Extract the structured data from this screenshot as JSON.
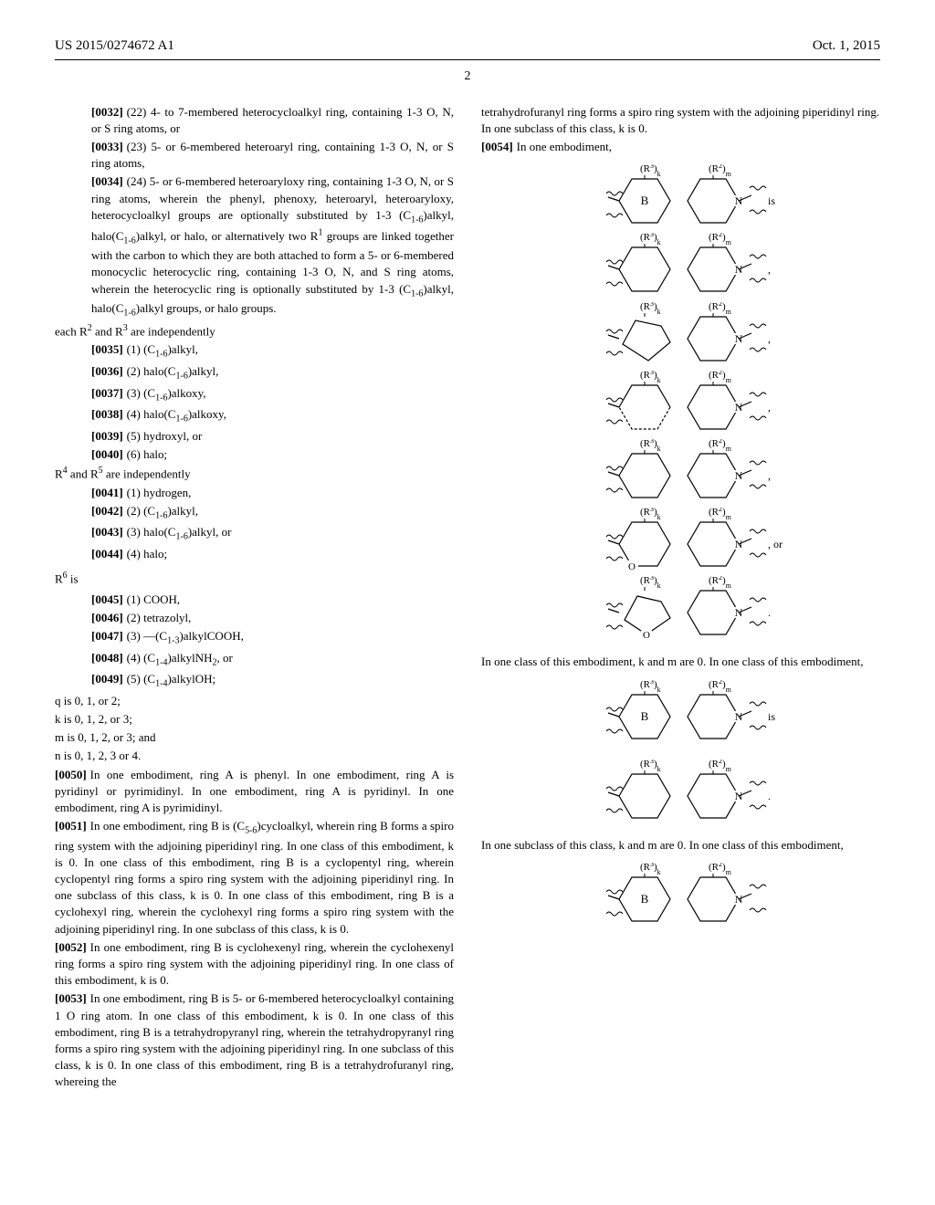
{
  "header": {
    "pub_number": "US 2015/0274672 A1",
    "pub_date": "Oct. 1, 2015",
    "page_number": "2"
  },
  "left_column": {
    "items": [
      {
        "type": "para",
        "num": "[0032]",
        "indent": 2,
        "text": "(22) 4- to 7-membered heterocycloalkyl ring, containing 1-3 O, N, or S ring atoms, or"
      },
      {
        "type": "para",
        "num": "[0033]",
        "indent": 2,
        "text": "(23) 5- or 6-membered heteroaryl ring, containing 1-3 O, N, or S ring atoms,"
      },
      {
        "type": "para",
        "num": "[0034]",
        "indent": 2,
        "text": "(24) 5- or 6-membered heteroaryloxy ring, containing 1-3 O, N, or S ring atoms, wherein the phenyl, phenoxy, heteroaryl, heteroaryloxy, heterocycloalkyl groups are optionally substituted by 1-3 (C₁₋₆)alkyl, halo(C₁₋₆)alkyl, or halo, or alternatively two R¹ groups are linked together with the carbon to which they are both attached to form a 5- or 6-membered monocyclic heterocyclic ring, containing 1-3 O, N, and S ring atoms, wherein the heterocyclic ring is optionally substituted by 1-3 (C₁₋₆)alkyl, halo(C₁₋₆)alkyl groups, or halo groups."
      },
      {
        "type": "plain",
        "text": "each R² and R³ are independently"
      },
      {
        "type": "para",
        "num": "[0035]",
        "indent": 2,
        "text": "(1) (C₁₋₆)alkyl,"
      },
      {
        "type": "para",
        "num": "[0036]",
        "indent": 2,
        "text": "(2) halo(C₁₋₆)alkyl,"
      },
      {
        "type": "para",
        "num": "[0037]",
        "indent": 2,
        "text": "(3) (C₁₋₆)alkoxy,"
      },
      {
        "type": "para",
        "num": "[0038]",
        "indent": 2,
        "text": "(4) halo(C₁₋₆)alkoxy,"
      },
      {
        "type": "para",
        "num": "[0039]",
        "indent": 2,
        "text": "(5) hydroxyl, or"
      },
      {
        "type": "para",
        "num": "[0040]",
        "indent": 2,
        "text": "(6) halo;"
      },
      {
        "type": "plain",
        "text": "R⁴ and R⁵ are independently"
      },
      {
        "type": "para",
        "num": "[0041]",
        "indent": 2,
        "text": "(1) hydrogen,"
      },
      {
        "type": "para",
        "num": "[0042]",
        "indent": 2,
        "text": "(2) (C₁₋₆)alkyl,"
      },
      {
        "type": "para",
        "num": "[0043]",
        "indent": 2,
        "text": "(3) halo(C₁₋₆)alkyl, or"
      },
      {
        "type": "para",
        "num": "[0044]",
        "indent": 2,
        "text": "(4) halo;"
      },
      {
        "type": "section",
        "text": "R⁶ is"
      },
      {
        "type": "para",
        "num": "[0045]",
        "indent": 2,
        "text": "(1) COOH,"
      },
      {
        "type": "para",
        "num": "[0046]",
        "indent": 2,
        "text": "(2) tetrazolyl,"
      },
      {
        "type": "para",
        "num": "[0047]",
        "indent": 2,
        "text": "(3) —(C₁₋₃)alkylCOOH,"
      },
      {
        "type": "para",
        "num": "[0048]",
        "indent": 2,
        "text": "(4) (C₁₋₄)alkylNH₂, or"
      },
      {
        "type": "para",
        "num": "[0049]",
        "indent": 2,
        "text": "(5) (C₁₋₄)alkylOH;"
      },
      {
        "type": "plain",
        "text": "q is 0, 1, or 2;"
      },
      {
        "type": "plain",
        "text": "k is 0, 1, 2, or 3;"
      },
      {
        "type": "plain",
        "text": "m is 0, 1, 2, or 3; and"
      },
      {
        "type": "plain",
        "text": "n is 0, 1, 2, 3 or 4."
      },
      {
        "type": "para",
        "num": "[0050]",
        "indent": 0,
        "text": "In one embodiment, ring A is phenyl. In one embodiment, ring A is pyridinyl or pyrimidinyl. In one embodiment, ring A is pyridinyl. In one embodiment, ring A is pyrimidinyl."
      },
      {
        "type": "para",
        "num": "[0051]",
        "indent": 0,
        "text": "In one embodiment, ring B is (C₅₋₆)cycloalkyl, wherein ring B forms a spiro ring system with the adjoining piperidinyl ring. In one class of this embodiment, k is 0. In one class of this embodiment, ring B is a cyclopentyl ring, wherein cyclopentyl ring forms a spiro ring system with the adjoining piperidinyl ring. In one subclass of this class, k is 0. In one class of this embodiment, ring B is a cyclohexyl ring, wherein the cyclohexyl ring forms a spiro ring system with the adjoining piperidinyl ring. In one subclass of this class, k is 0."
      },
      {
        "type": "para",
        "num": "[0052]",
        "indent": 0,
        "text": "In one embodiment, ring B is cyclohexenyl ring, wherein the cyclohexenyl ring forms a spiro ring system with the adjoining piperidinyl ring. In one class of this embodiment, k is 0."
      },
      {
        "type": "para",
        "num": "[0053]",
        "indent": 0,
        "text": "In one embodiment, ring B is 5- or 6-membered heterocycloalkyl containing 1 O ring atom. In one class of this embodiment, k is 0. In one class of this embodiment, ring B is a tetrahydropyranyl ring, wherein the tetrahydropyranyl ring forms a spiro ring system with the adjoining piperidinyl ring. In one subclass of this class, k is 0. In one class of this embodiment, ring B is a tetrahydrofuranyl ring, whereing the"
      }
    ]
  },
  "right_column": {
    "items": [
      {
        "type": "plain",
        "text": "tetrahydrofuranyl ring forms a spiro ring system with the adjoining piperidinyl ring. In one subclass of this class, k is 0."
      },
      {
        "type": "para",
        "num": "[0054]",
        "indent": 0,
        "text": "In one embodiment,"
      },
      {
        "type": "diagram",
        "id": "diagram1"
      },
      {
        "type": "plain",
        "text": "In one class of this embodiment, k and m are 0. In one class of this embodiment,"
      },
      {
        "type": "diagram",
        "id": "diagram2"
      },
      {
        "type": "plain",
        "text": "In one subclass of this class, k and m are 0. In one class of this embodiment,"
      },
      {
        "type": "diagram",
        "id": "diagram3"
      }
    ]
  },
  "diagrams": {
    "labels": {
      "R3k": "(R³)ₖ",
      "R2m": "(R²)ₘ",
      "B": "B",
      "N": "N",
      "O": "O",
      "is": "is",
      "or": ", or"
    },
    "colors": {
      "stroke": "#000000",
      "fill": "none",
      "text": "#000000"
    }
  }
}
